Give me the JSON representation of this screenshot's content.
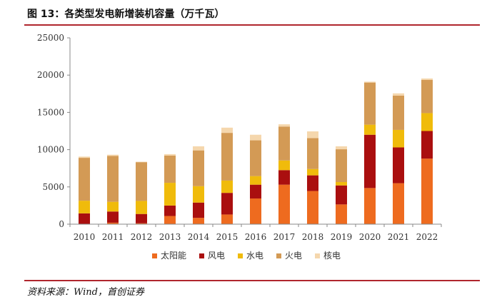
{
  "header": {
    "title": "图 13：各类型发电新增装机容量（万千瓦）"
  },
  "footer": {
    "source": "资料来源：Wind，首创证券"
  },
  "chart_data": {
    "type": "bar",
    "stacked": true,
    "categories": [
      "2010",
      "2011",
      "2012",
      "2013",
      "2014",
      "2015",
      "2016",
      "2017",
      "2018",
      "2019",
      "2020",
      "2021",
      "2022"
    ],
    "series": [
      {
        "name": "太阳能",
        "color": "#ee6b1f",
        "values": [
          50,
          200,
          120,
          1100,
          850,
          1300,
          3450,
          5300,
          4450,
          2650,
          4850,
          5500,
          8800
        ]
      },
      {
        "name": "风电",
        "color": "#aa0f0f",
        "values": [
          1400,
          1500,
          1250,
          1400,
          2050,
          2900,
          1850,
          1950,
          2100,
          2550,
          7150,
          4800,
          3700
        ]
      },
      {
        "name": "水电",
        "color": "#f0bb0b",
        "values": [
          1700,
          1300,
          1750,
          3050,
          2200,
          1650,
          1150,
          1300,
          850,
          450,
          1350,
          2350,
          2400
        ]
      },
      {
        "name": "火电",
        "color": "#d39a55",
        "values": [
          5750,
          6150,
          5200,
          3650,
          4800,
          6400,
          4800,
          4550,
          4150,
          4400,
          5650,
          4600,
          4450
        ]
      },
      {
        "name": "核电",
        "color": "#f5d7ad",
        "values": [
          170,
          170,
          60,
          200,
          550,
          700,
          750,
          300,
          900,
          400,
          120,
          300,
          200
        ]
      }
    ],
    "ylim": [
      0,
      25000
    ],
    "yticks": [
      0,
      5000,
      10000,
      15000,
      20000,
      25000
    ],
    "legend_position": "bottom",
    "grid": false
  }
}
